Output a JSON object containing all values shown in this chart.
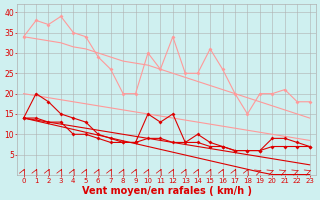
{
  "x": [
    0,
    1,
    2,
    3,
    4,
    5,
    6,
    7,
    8,
    9,
    10,
    11,
    12,
    13,
    14,
    15,
    16,
    17,
    18,
    19,
    20,
    21,
    22,
    23
  ],
  "lp_jagged": [
    34,
    38,
    37,
    39,
    35,
    34,
    29,
    26,
    20,
    20,
    30,
    26,
    34,
    25,
    25,
    31,
    26,
    20,
    15,
    20,
    20,
    21,
    18,
    18
  ],
  "lp_trend_hi": [
    34,
    33.5,
    33,
    32.5,
    31.5,
    31,
    30,
    29,
    28,
    27.5,
    27,
    26,
    25,
    24,
    23,
    22,
    21,
    20,
    19,
    18,
    17,
    16,
    15,
    14
  ],
  "lp_trend_lo": [
    20,
    19.5,
    19,
    18.5,
    18,
    17.5,
    17,
    16.5,
    16,
    15.5,
    15,
    14.5,
    14,
    13.5,
    13,
    12.5,
    12,
    11.5,
    11,
    10.5,
    10,
    9.5,
    9,
    8.5
  ],
  "dr_jagged": [
    14,
    20,
    18,
    15,
    14,
    13,
    10,
    9,
    8,
    8,
    15,
    13,
    15,
    8,
    10,
    8,
    7,
    6,
    6,
    6,
    9,
    9,
    8,
    7
  ],
  "dr_trend_hi": [
    14,
    13.5,
    13,
    12.5,
    12,
    11.5,
    11,
    10.5,
    10,
    9.5,
    9,
    8.5,
    8,
    7.5,
    7,
    6.5,
    6,
    5.5,
    5,
    4.5,
    4,
    3.5,
    3,
    2.5
  ],
  "dr_trend_lo": [
    14,
    13.3,
    12.6,
    11.9,
    11.2,
    10.5,
    9.8,
    9.1,
    8.4,
    7.7,
    7.0,
    6.3,
    5.6,
    4.9,
    4.2,
    3.5,
    2.8,
    2.1,
    1.4,
    0.7,
    0.1,
    0.1,
    0.1,
    0.1
  ],
  "dr_flat": [
    14,
    14,
    13,
    13,
    10,
    10,
    9,
    8,
    8,
    8,
    9,
    9,
    8,
    8,
    8,
    7,
    7,
    6,
    6,
    6,
    7,
    7,
    7,
    7
  ],
  "bg_color": "#cff0f0",
  "grid_color": "#b0b0b0",
  "light_pink": "#ff9999",
  "dark_red": "#dd0000",
  "xlabel": "Vent moyen/en rafales ( km/h )",
  "ylim": [
    0,
    42
  ],
  "xlim": [
    -0.5,
    23.5
  ],
  "yticks": [
    5,
    10,
    15,
    20,
    25,
    30,
    35,
    40
  ]
}
